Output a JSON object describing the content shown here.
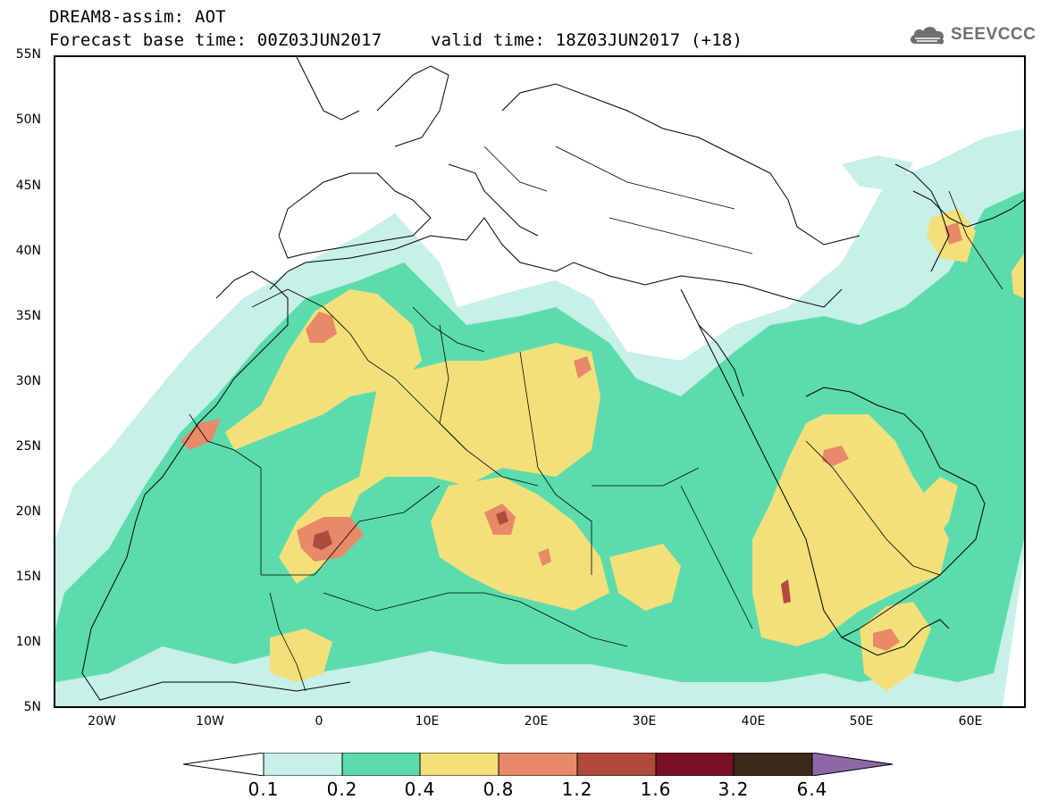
{
  "header": {
    "title": "DREAM8-assim: AOT",
    "base_time": "Forecast base time: 00Z03JUN2017",
    "valid_time": "valid time: 18Z03JUN2017 (+18)"
  },
  "logo": {
    "text": "SEEVCCC",
    "icon": "cloud-icon"
  },
  "map": {
    "projection": "lat-lon",
    "lon_range": [
      -25,
      65
    ],
    "lat_range": [
      5,
      55
    ],
    "lat_labels": [
      "55N",
      "50N",
      "45N",
      "40N",
      "35N",
      "30N",
      "25N",
      "20N",
      "15N",
      "10N",
      "5N"
    ],
    "lon_labels": [
      "20W",
      "10W",
      "0",
      "10E",
      "20E",
      "30E",
      "40E",
      "50E",
      "60E"
    ],
    "field": "Aerosol optical thickness (dust)",
    "colors": {
      "0.1-0.2": "#c7f0e6",
      "0.2-0.4": "#5cdcac",
      "0.4-0.8": "#f3e07a",
      "0.8-1.2": "#e8896a",
      "1.2-1.6": "#b04a3c",
      "1.6-3.2": "#7a1024",
      "3.2-6.4": "#3b2a17",
      ">6.4": "#8e67a8"
    }
  },
  "colorbar": {
    "labels": [
      "0.1",
      "0.2",
      "0.4",
      "0.8",
      "1.2",
      "1.6",
      "3.2",
      "6.4"
    ],
    "colors": [
      "#c7f0e6",
      "#5cdcac",
      "#f3e07a",
      "#e8896a",
      "#b04a3c",
      "#7a1024",
      "#3b2a17"
    ],
    "under_color": "#ffffff",
    "over_color": "#8e67a8"
  }
}
